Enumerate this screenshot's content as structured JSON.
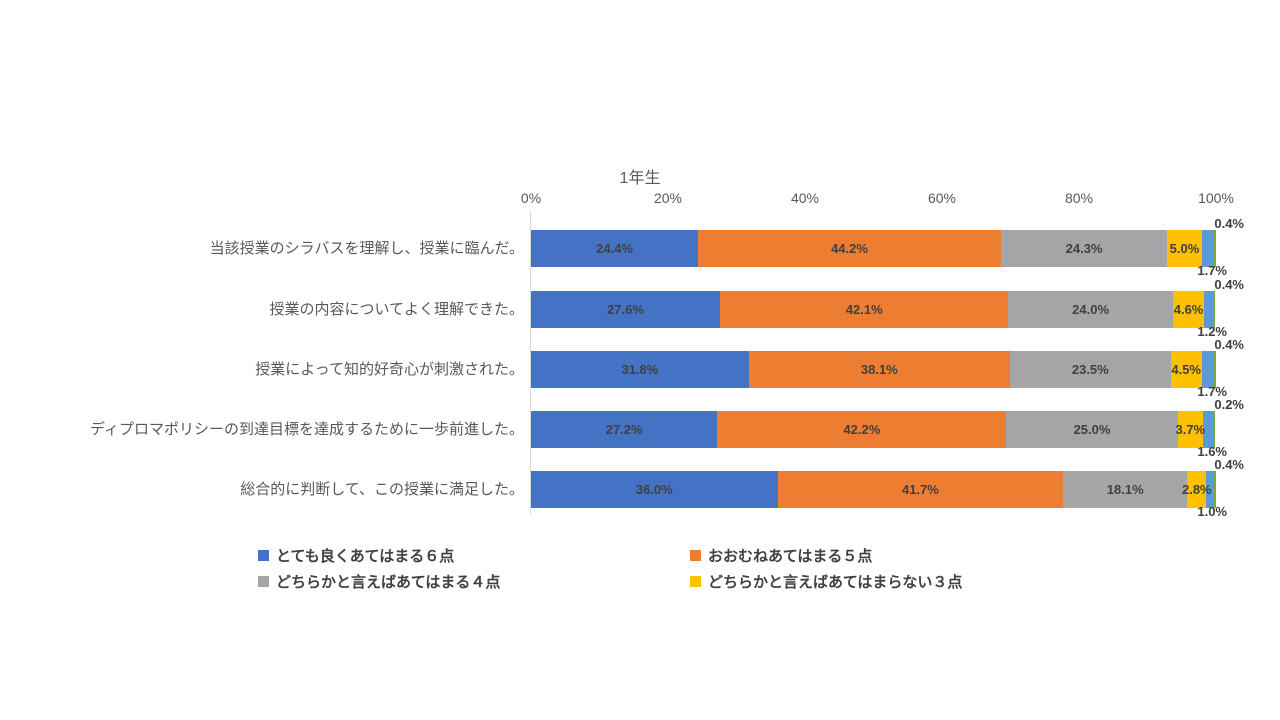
{
  "chart_data": {
    "type": "bar",
    "variant": "horizontal-stacked-percent",
    "title": "1年生",
    "categories": [
      "当該授業のシラバスを理解し、授業に臨んだ。",
      "授業の内容についてよく理解できた。",
      "授業によって知的好奇心が刺激された。",
      "ディプロマポリシーの到達目標を達成するために一歩前進した。",
      "総合的に判断して、この授業に満足した。"
    ],
    "series": [
      {
        "name": "とても良くあてはまる６点",
        "color": "#4472C4",
        "values": [
          24.4,
          27.6,
          31.8,
          27.2,
          36.0
        ],
        "labels": [
          "24.4%",
          "27.6%",
          "31.8%",
          "27.2%",
          "36.0%"
        ],
        "label_position": "inside",
        "in_legend": true
      },
      {
        "name": "おおむねあてはまる５点",
        "color": "#ED7D31",
        "values": [
          44.2,
          42.1,
          38.1,
          42.2,
          41.7
        ],
        "labels": [
          "44.2%",
          "42.1%",
          "38.1%",
          "42.2%",
          "41.7%"
        ],
        "label_position": "inside",
        "in_legend": true
      },
      {
        "name": "どちらかと言えばあてはまる４点",
        "color": "#A5A5A5",
        "values": [
          24.3,
          24.0,
          23.5,
          25.0,
          18.1
        ],
        "labels": [
          "24.3%",
          "24.0%",
          "23.5%",
          "25.0%",
          "18.1%"
        ],
        "label_position": "inside",
        "in_legend": true
      },
      {
        "name": "どちらかと言えばあてはまらない３点",
        "color": "#FFC000",
        "values": [
          5.0,
          4.6,
          4.5,
          3.7,
          2.8
        ],
        "labels": [
          "5.0%",
          "4.6%",
          "4.5%",
          "3.7%",
          "2.8%"
        ],
        "label_position": "inside",
        "in_legend": true
      },
      {
        "name": "",
        "color": "#5B9BD5",
        "values": [
          1.7,
          1.2,
          1.7,
          1.6,
          1.0
        ],
        "labels": [
          "1.7%",
          "1.2%",
          "1.7%",
          "1.6%",
          "1.0%"
        ],
        "label_position": "below-outside",
        "in_legend": false
      },
      {
        "name": "",
        "color": "#70AD47",
        "values": [
          0.4,
          0.4,
          0.4,
          0.2,
          0.4
        ],
        "labels": [
          "0.4%",
          "0.4%",
          "0.4%",
          "0.2%",
          "0.4%"
        ],
        "label_position": "above-outside",
        "in_legend": false
      }
    ],
    "x_ticks": [
      "0%",
      "20%",
      "40%",
      "60%",
      "80%",
      "100%"
    ],
    "xlim": [
      0,
      100
    ],
    "grid": false,
    "legend_position": "bottom-two-columns"
  },
  "legend": {
    "items": [
      {
        "label": "とても良くあてはまる６点",
        "color": "#4472C4"
      },
      {
        "label": "おおむねあてはまる５点",
        "color": "#ED7D31"
      },
      {
        "label": "どちらかと言えばあてはまる４点",
        "color": "#A5A5A5"
      },
      {
        "label": "どちらかと言えばあてはまらない３点",
        "color": "#FFC000"
      }
    ]
  },
  "colors": {
    "axis_line": "#D9D9D9",
    "axis_text": "#595959",
    "data_label_text": "#404040",
    "background": "#FFFFFF"
  }
}
